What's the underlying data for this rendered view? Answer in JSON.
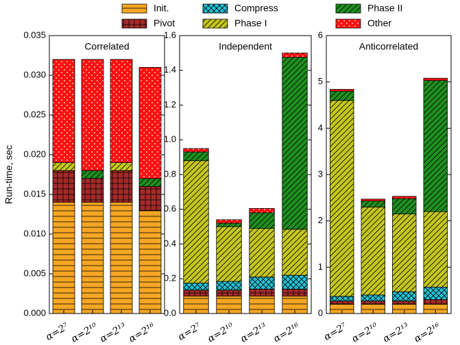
{
  "chart_data": [
    {
      "type": "bar",
      "stacked": true,
      "title": "Correlated",
      "ylabel": "Run-time, sec",
      "categories": [
        "α=2⁷",
        "α=2¹⁰",
        "α=2¹³",
        "α=2¹⁶"
      ],
      "ylim": [
        0,
        0.035
      ],
      "yticks": [
        {
          "value": 0,
          "label": "0.000"
        },
        {
          "value": 0.005,
          "label": "0.005"
        },
        {
          "value": 0.01,
          "label": "0.010"
        },
        {
          "value": 0.015,
          "label": "0.015"
        },
        {
          "value": 0.02,
          "label": "0.020"
        },
        {
          "value": 0.025,
          "label": "0.025"
        },
        {
          "value": 0.03,
          "label": "0.030"
        },
        {
          "value": 0.035,
          "label": "0.035"
        }
      ],
      "series": [
        {
          "name": "Init.",
          "color": "#f5a623",
          "hatch": "horizontal",
          "values": [
            0.014,
            0.014,
            0.014,
            0.013
          ]
        },
        {
          "name": "Pivot",
          "color": "#a52a2a",
          "hatch": "grid",
          "values": [
            0.004,
            0.003,
            0.004,
            0.003
          ]
        },
        {
          "name": "Compress",
          "color": "#22c3d6",
          "hatch": "cross",
          "values": [
            0,
            0,
            0,
            0
          ]
        },
        {
          "name": "Phase I",
          "color": "#c5c71f",
          "hatch": "diagonal",
          "values": [
            0.001,
            0,
            0.001,
            0
          ]
        },
        {
          "name": "Phase II",
          "color": "#1f8f1f",
          "hatch": "diagonal",
          "values": [
            0,
            0.001,
            0,
            0.001
          ]
        },
        {
          "name": "Other",
          "color": "#ff1010",
          "hatch": "dots",
          "values": [
            0.013,
            0.014,
            0.013,
            0.014
          ]
        }
      ]
    },
    {
      "type": "bar",
      "stacked": true,
      "title": "Independent",
      "categories": [
        "α=2⁷",
        "α=2¹⁰",
        "α=2¹³",
        "α=2¹⁶"
      ],
      "ylim": [
        0,
        1.6
      ],
      "yticks": [
        {
          "value": 0,
          "label": "0.0"
        },
        0.2,
        0.4,
        0.6,
        0.8,
        {
          "value": 1,
          "label": "1.0"
        },
        1.2,
        1.4,
        1.6
      ],
      "series": [
        {
          "name": "Init.",
          "color": "#f5a623",
          "hatch": "horizontal",
          "values": [
            0.1,
            0.1,
            0.1,
            0.1
          ]
        },
        {
          "name": "Pivot",
          "color": "#a52a2a",
          "hatch": "grid",
          "values": [
            0.035,
            0.035,
            0.04,
            0.04
          ]
        },
        {
          "name": "Compress",
          "color": "#22c3d6",
          "hatch": "cross",
          "values": [
            0.04,
            0.05,
            0.07,
            0.08
          ]
        },
        {
          "name": "Phase I",
          "color": "#c5c71f",
          "hatch": "diagonal",
          "values": [
            0.705,
            0.315,
            0.28,
            0.265
          ]
        },
        {
          "name": "Phase II",
          "color": "#1f8f1f",
          "hatch": "diagonal",
          "values": [
            0.05,
            0.02,
            0.09,
            0.99
          ]
        },
        {
          "name": "Other",
          "color": "#ff1010",
          "hatch": "dots",
          "values": [
            0.02,
            0.02,
            0.025,
            0.025
          ]
        }
      ]
    },
    {
      "type": "bar",
      "stacked": true,
      "title": "Anticorrelated",
      "categories": [
        "α=2⁷",
        "α=2¹⁰",
        "α=2¹³",
        "α=2¹⁶"
      ],
      "ylim": [
        0,
        6
      ],
      "yticks": [
        0,
        1,
        2,
        3,
        4,
        5,
        6
      ],
      "series": [
        {
          "name": "Init.",
          "color": "#f5a623",
          "hatch": "horizontal",
          "values": [
            0.2,
            0.2,
            0.2,
            0.2
          ]
        },
        {
          "name": "Pivot",
          "color": "#a52a2a",
          "hatch": "grid",
          "values": [
            0.07,
            0.07,
            0.07,
            0.1
          ]
        },
        {
          "name": "Compress",
          "color": "#22c3d6",
          "hatch": "cross",
          "values": [
            0.1,
            0.13,
            0.2,
            0.27
          ]
        },
        {
          "name": "Phase I",
          "color": "#c5c71f",
          "hatch": "diagonal",
          "values": [
            4.23,
            1.9,
            1.68,
            1.63
          ]
        },
        {
          "name": "Phase II",
          "color": "#1f8f1f",
          "hatch": "diagonal",
          "values": [
            0.2,
            0.13,
            0.33,
            2.83
          ]
        },
        {
          "name": "Other",
          "color": "#ff1010",
          "hatch": "dots",
          "values": [
            0.04,
            0.04,
            0.05,
            0.05
          ]
        }
      ]
    }
  ]
}
